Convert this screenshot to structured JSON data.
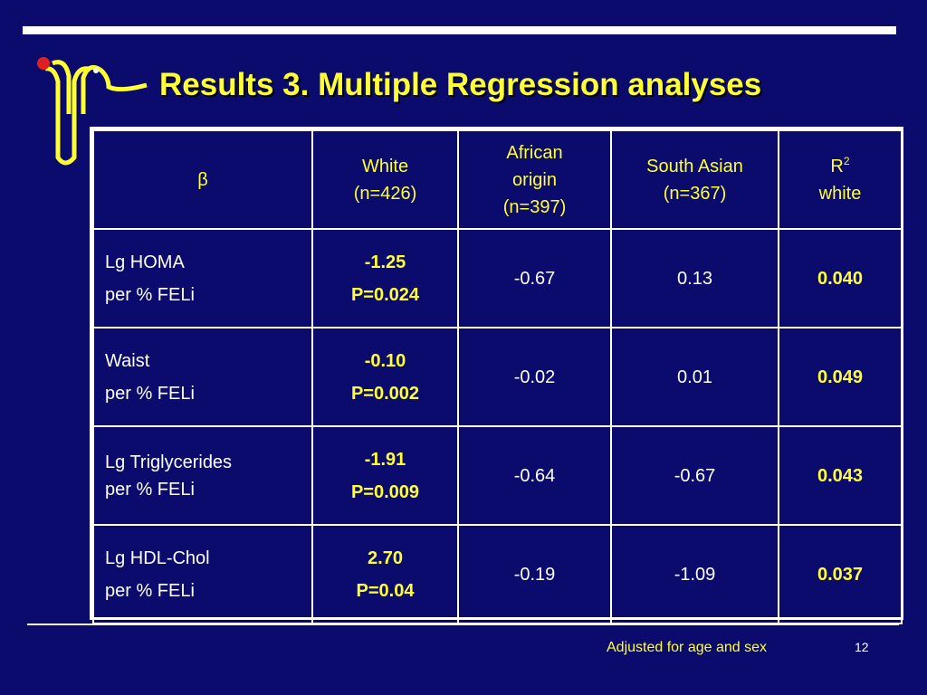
{
  "slide": {
    "title": "Results 3. Multiple Regression analyses",
    "footnote": "Adjusted for age and sex",
    "page_number": "12",
    "colors": {
      "background": "#0b0b6e",
      "accent": "#ffff33",
      "text": "#ffffff",
      "logo_dot": "#e02020"
    },
    "logo_icon": "bent-tubes-logo-icon"
  },
  "table": {
    "header": {
      "beta": "β",
      "white_line1": "White",
      "white_line2": "(n=426)",
      "african_line1": "African",
      "african_line2": "origin",
      "african_line3": "(n=397)",
      "south_asian_line1": "South Asian",
      "south_asian_line2": "(n=367)",
      "r2_base": "R",
      "r2_sup": "2",
      "r2_line2": "white"
    },
    "rows": [
      {
        "label1": "Lg HOMA",
        "label2": "per % FELi",
        "white_beta": "-1.25",
        "white_p": "P=0.024",
        "african": "-0.67",
        "south_asian": "0.13",
        "r2": "0.040"
      },
      {
        "label1": "Waist",
        "label2": "per % FELi",
        "white_beta": "-0.10",
        "white_p": "P=0.002",
        "african": "-0.02",
        "south_asian": "0.01",
        "r2": "0.049"
      },
      {
        "label1": "Lg Triglycerides",
        "label2": "per % FELi",
        "white_beta": "-1.91",
        "white_p": "P=0.009",
        "african": "-0.64",
        "south_asian": "-0.67",
        "r2": "0.043"
      },
      {
        "label1": "Lg HDL-Chol",
        "label2": "per % FELi",
        "white_beta": "2.70",
        "white_p": "P=0.04",
        "african": "-0.19",
        "south_asian": "-1.09",
        "r2": "0.037"
      }
    ]
  }
}
